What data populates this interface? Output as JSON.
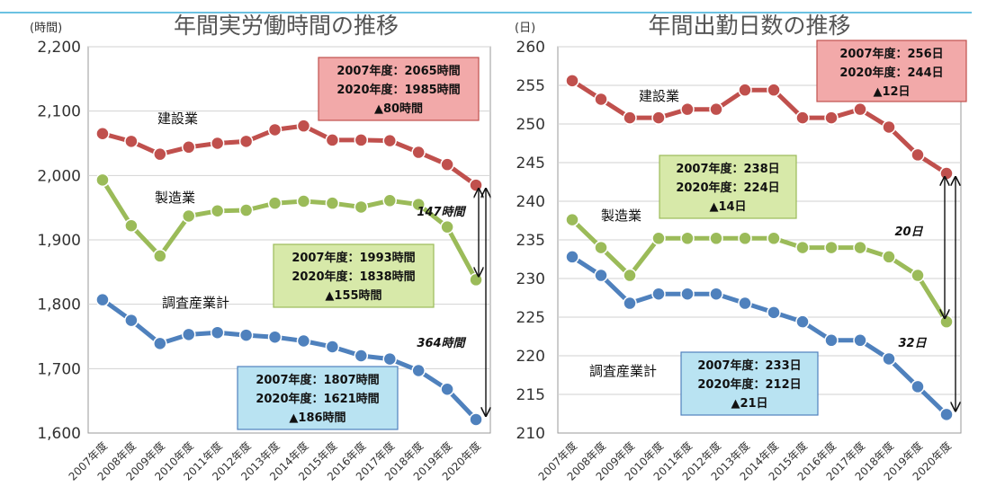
{
  "chart_data": [
    {
      "type": "line",
      "title": "年間実労働時間の推移",
      "ylabel": "(時間)",
      "ylim": [
        1600,
        2200
      ],
      "yticks": [
        1600,
        1700,
        1800,
        1900,
        2000,
        2100,
        2200
      ],
      "ytick_labels": [
        "1,600",
        "1,700",
        "1,800",
        "1,900",
        "2,000",
        "2,100",
        "2,200"
      ],
      "grid": true,
      "categories": [
        "2007年度",
        "2008年度",
        "2009年度",
        "2010年度",
        "2011年度",
        "2012年度",
        "2013年度",
        "2014年度",
        "2015年度",
        "2016年度",
        "2017年度",
        "2018年度",
        "2019年度",
        "2020年度"
      ],
      "series": [
        {
          "name": "建設業",
          "color": "#c0504d",
          "values": [
            2065,
            2053,
            2033,
            2044,
            2050,
            2053,
            2071,
            2077,
            2055,
            2055,
            2054,
            2036,
            2017,
            1985
          ]
        },
        {
          "name": "製造業",
          "color": "#9bbb59",
          "values": [
            1993,
            1922,
            1875,
            1937,
            1945,
            1946,
            1957,
            1960,
            1957,
            1951,
            1961,
            1955,
            1920,
            1838
          ]
        },
        {
          "name": "調査産業計",
          "color": "#4f81bd",
          "values": [
            1807,
            1775,
            1739,
            1753,
            1756,
            1752,
            1749,
            1743,
            1734,
            1720,
            1715,
            1697,
            1668,
            1621
          ]
        }
      ],
      "annotations": [
        {
          "series": "建設業",
          "lines": [
            "2007年度：2065時間",
            "2020年度：1985時間",
            "▲80時間"
          ]
        },
        {
          "series": "製造業",
          "lines": [
            "2007年度：1993時間",
            "2020年度：1838時間",
            "▲155時間"
          ]
        },
        {
          "series": "調査産業計",
          "lines": [
            "2007年度：1807時間",
            "2020年度：1621時間",
            "▲186時間"
          ]
        }
      ],
      "gaps": [
        {
          "label": "147時間",
          "from": 1985,
          "to": 1838
        },
        {
          "label": "364時間",
          "from": 1985,
          "to": 1621
        }
      ]
    },
    {
      "type": "line",
      "title": "年間出勤日数の推移",
      "ylabel": "(日)",
      "ylim": [
        210,
        260
      ],
      "yticks": [
        210,
        215,
        220,
        225,
        230,
        235,
        240,
        245,
        250,
        255,
        260
      ],
      "ytick_labels": [
        "210",
        "215",
        "220",
        "225",
        "230",
        "235",
        "240",
        "245",
        "250",
        "255",
        "260"
      ],
      "grid": true,
      "categories": [
        "2007年度",
        "2008年度",
        "2009年度",
        "2010年度",
        "2011年度",
        "2012年度",
        "2013年度",
        "2014年度",
        "2015年度",
        "2016年度",
        "2017年度",
        "2018年度",
        "2019年度",
        "2020年度"
      ],
      "series": [
        {
          "name": "建設業",
          "color": "#c0504d",
          "values": [
            255.6,
            253.2,
            250.8,
            250.8,
            251.9,
            251.9,
            254.4,
            254.4,
            250.8,
            250.8,
            251.9,
            249.6,
            246.0,
            243.6
          ]
        },
        {
          "name": "製造業",
          "color": "#9bbb59",
          "values": [
            237.6,
            234.0,
            230.4,
            235.2,
            235.2,
            235.2,
            235.2,
            235.2,
            234.0,
            234.0,
            234.0,
            232.8,
            230.4,
            224.4
          ]
        },
        {
          "name": "調査産業計",
          "color": "#4f81bd",
          "values": [
            232.8,
            230.4,
            226.8,
            228.0,
            228.0,
            228.0,
            226.8,
            225.6,
            224.4,
            222.0,
            222.0,
            219.6,
            216.0,
            212.4
          ]
        }
      ],
      "annotations": [
        {
          "series": "建設業",
          "lines": [
            "2007年度：256日",
            "2020年度：244日",
            "▲12日"
          ]
        },
        {
          "series": "製造業",
          "lines": [
            "2007年度：238日",
            "2020年度：224日",
            "▲14日"
          ]
        },
        {
          "series": "調査産業計",
          "lines": [
            "2007年度：233日",
            "2020年度：212日",
            "▲21日"
          ]
        }
      ],
      "gaps": [
        {
          "label": "20日",
          "from": 243.6,
          "to": 224.4
        },
        {
          "label": "32日",
          "from": 243.6,
          "to": 212.4
        }
      ]
    }
  ]
}
